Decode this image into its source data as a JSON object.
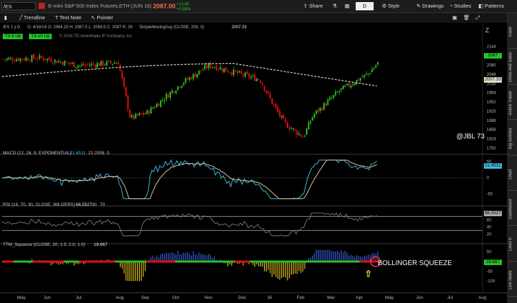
{
  "topbar": {
    "symbol": "/ES",
    "description": "E-mini S&P 500 Index Futures,ETH (JUN 16)",
    "last_price": "2087.00",
    "change": "+12.00",
    "change_pct": "+0.58%",
    "share_label": "Share",
    "style_label": "Style",
    "drawings_label": "Drawings",
    "studies_label": "Studies",
    "patterns_label": "Patterns",
    "aggregation": "D"
  },
  "drawing_tools": {
    "trendline": "Trendline",
    "textnote": "Text Note",
    "pointer": "Pointer"
  },
  "chart_header": {
    "period": "/ES 1 y D",
    "ohlc": "D: 4/18/16  O: 2064.25  H: 2087.5  L: 2058.5  C: 2087  R: 29",
    "study": "SimpleMovingAvg (CLOSE, 200, 0)",
    "study_value": "2007.33",
    "badge1": "T3-5 Up",
    "badge2": "T3-10 Up",
    "copyright": "© 2016 TD Ameritrade IP Company, Inc."
  },
  "panels": {
    "macd_label": "MACD (12, 26, 9, EXPONENTIAL)",
    "macd_v1": "21.4511",
    "macd_v2": "21.2058",
    "macd_v3": "0",
    "rsi_label": "RSI (14, 70, 30, CLOSE, WILDERS)",
    "rsi_v1": "66.5527",
    "rsi_v2": "30",
    "rsi_v3": "70",
    "ttm_label": "TTM_Squeeze (CLOSE, 20, 1.5, 2.0, 1.0)",
    "ttm_v1": "19.667"
  },
  "annotations": {
    "watermark": "@JBL 73",
    "squeeze": "BOLLINGER SQUEEZE"
  },
  "price_boxes": {
    "last": "2087",
    "sma": "2007.33",
    "macd": "21.4511",
    "rsi": "66.5527",
    "ttm": "19.667"
  },
  "right_rail": [
    "Trade",
    "Times And Sales",
    "Active Trader",
    "Big Buttons",
    "Chart",
    "Dashboard",
    "Level II",
    "Live News"
  ],
  "colors": {
    "up": "#27c227",
    "down": "#e01010",
    "sma": "#e8e0c8",
    "macd_line": "#3fb8e0",
    "macd_signal": "#d8c89a",
    "rsi": "#8a8a8a",
    "squeeze_on": "#e01010",
    "squeeze_off": "#27c227",
    "hist_up": "#3a5fd8",
    "hist_down": "#e0c020"
  },
  "chart_data": [
    {
      "type": "candlestick",
      "title": "/ES 1 y D",
      "x_tick_labels": [
        "May",
        "Jun",
        "Jul",
        "Aug",
        "Sep",
        "Oct",
        "Nov",
        "Dec",
        "16",
        "Feb",
        "Mar",
        "Apr",
        "May",
        "Jun",
        "Jul",
        "Aug"
      ],
      "y_tick_labels": [
        "2144",
        "2112",
        "2080",
        "2048",
        "2016",
        "1984",
        "1952",
        "1920",
        "1888",
        "1856",
        "1824",
        "1792"
      ],
      "ylim": [
        1792,
        2160
      ],
      "grid": false,
      "anchors_close": [
        [
          "May",
          2100
        ],
        [
          "Jun",
          2105
        ],
        [
          "Jul",
          2078
        ],
        [
          "Aug",
          2090
        ],
        [
          "Aug",
          1895
        ],
        [
          "Sep",
          1915
        ],
        [
          "Oct",
          2015
        ],
        [
          "Nov",
          2080
        ],
        [
          "Dec",
          2050
        ],
        [
          "Dec",
          2030
        ],
        [
          "16",
          1950
        ],
        [
          "16",
          1880
        ],
        [
          "Feb",
          1830
        ],
        [
          "Feb",
          1905
        ],
        [
          "Mar",
          1990
        ],
        [
          "Apr",
          2050
        ],
        [
          "Apr",
          2087
        ]
      ],
      "series": [
        {
          "name": "SimpleMovingAvg (CLOSE, 200, 0)",
          "start": 2040,
          "peak": 2085,
          "end": 2007.33
        }
      ]
    },
    {
      "type": "line",
      "title": "MACD (12, 26, 9, EXPONENTIAL)",
      "y_tick_labels": [
        "50",
        "0",
        "-50"
      ],
      "ylim": [
        -70,
        60
      ],
      "values_last": [
        21.4511,
        21.2058
      ]
    },
    {
      "type": "line",
      "title": "RSI (14, 70, 30, CLOSE, WILDERS)",
      "y_tick_labels": [
        "60",
        "40",
        "20"
      ],
      "ylim": [
        10,
        90
      ],
      "levels": [
        30,
        70
      ],
      "last": 66.5527
    },
    {
      "type": "bar",
      "title": "TTM_Squeeze (CLOSE, 20, 1.5, 2.0, 1.0)",
      "y_tick_labels": [
        "50",
        "0",
        "-50",
        "-100"
      ],
      "ylim": [
        -110,
        70
      ],
      "last": 19.667
    }
  ]
}
